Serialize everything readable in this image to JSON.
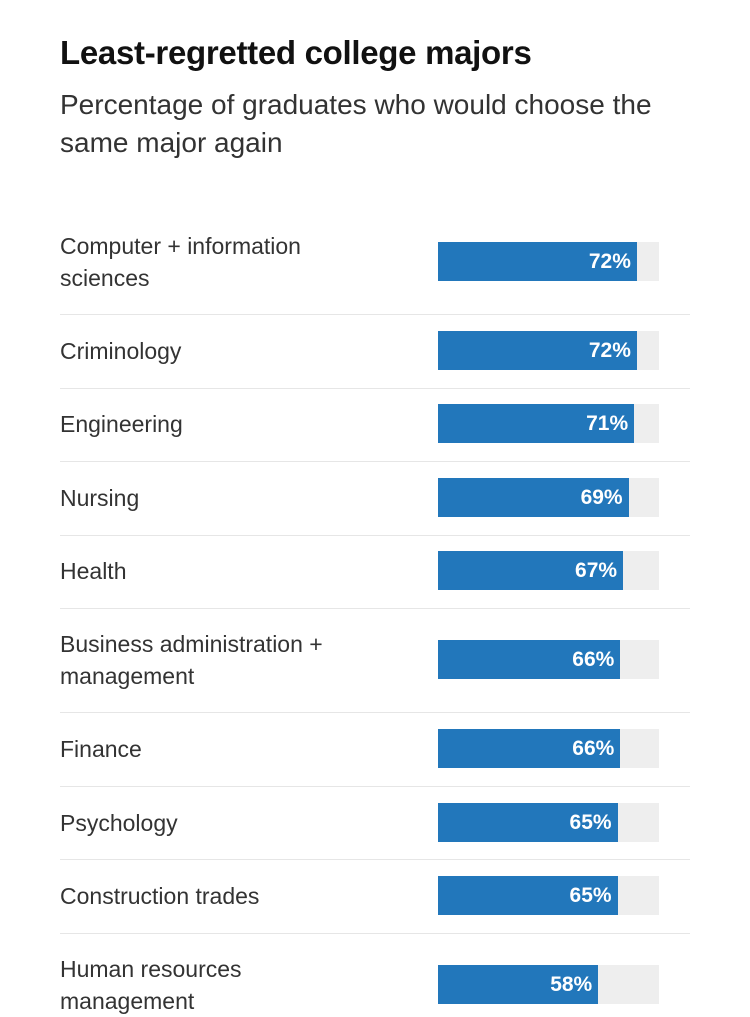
{
  "chart_data": {
    "type": "bar",
    "orientation": "horizontal",
    "title": "Least-regretted college majors",
    "subtitle": "Percentage of graduates who would choose the same major again",
    "categories": [
      "Computer + information sciences",
      "Criminology",
      "Engineering",
      "Nursing",
      "Health",
      "Business administration + management",
      "Finance",
      "Psychology",
      "Construction trades",
      "Human resources management"
    ],
    "values": [
      72,
      72,
      71,
      69,
      67,
      66,
      66,
      65,
      65,
      58
    ],
    "value_labels": [
      "72%",
      "72%",
      "71%",
      "69%",
      "67%",
      "66%",
      "66%",
      "65%",
      "65%",
      "58%"
    ],
    "xlim": [
      0,
      100
    ],
    "grid": false,
    "legend": "none",
    "colors": {
      "bar": "#2277bb",
      "track": "#eeeeee"
    }
  }
}
